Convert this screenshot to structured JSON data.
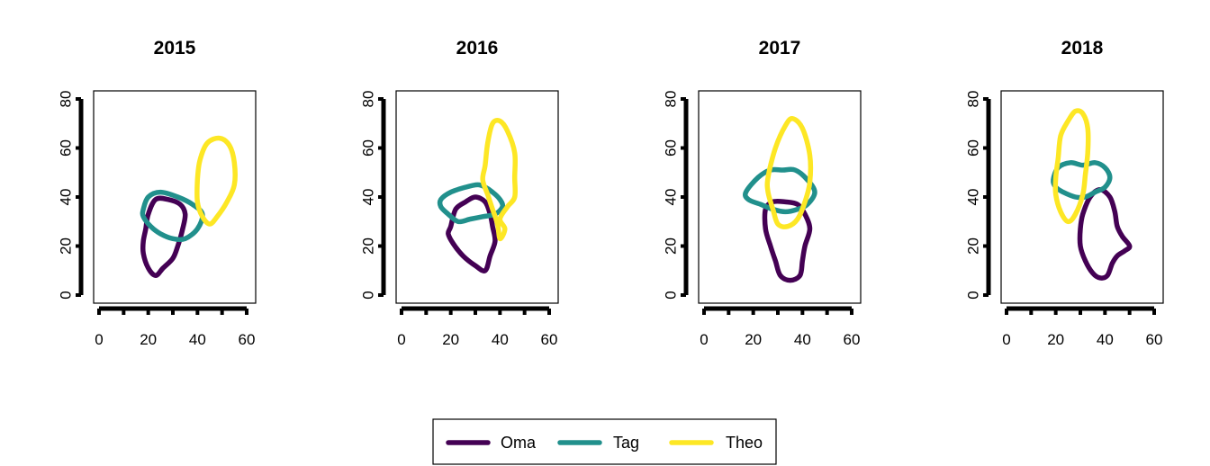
{
  "colors": {
    "Oma": "#440154",
    "Tag": "#21908C",
    "Theo": "#FDE725"
  },
  "legend": {
    "entries": [
      "Oma",
      "Tag",
      "Theo"
    ],
    "placement": "bottom-center"
  },
  "chart_data": [
    {
      "type": "line",
      "title": "2015",
      "xlabel": "",
      "ylabel": "",
      "xlim": [
        0,
        60
      ],
      "ylim": [
        0,
        80
      ],
      "xticks": [
        0,
        20,
        40,
        60
      ],
      "yticks": [
        0,
        20,
        40,
        60,
        80
      ],
      "grid": false,
      "series": [
        {
          "name": "Oma",
          "closed": true,
          "points": [
            [
              20,
              33
            ],
            [
              23,
              39
            ],
            [
              28,
              39
            ],
            [
              33,
              37
            ],
            [
              35,
              33
            ],
            [
              34,
              27
            ],
            [
              32,
              20
            ],
            [
              30,
              15
            ],
            [
              26,
              11
            ],
            [
              23,
              8
            ],
            [
              20,
              11
            ],
            [
              18,
              17
            ],
            [
              18,
              22
            ],
            [
              19,
              27
            ]
          ]
        },
        {
          "name": "Tag",
          "closed": true,
          "points": [
            [
              18,
              35
            ],
            [
              20,
              40
            ],
            [
              25,
              42
            ],
            [
              32,
              40
            ],
            [
              38,
              37
            ],
            [
              42,
              33
            ],
            [
              40,
              27
            ],
            [
              35,
              23
            ],
            [
              30,
              23
            ],
            [
              25,
              25
            ],
            [
              21,
              28
            ],
            [
              18,
              32
            ]
          ]
        },
        {
          "name": "Theo",
          "closed": true,
          "points": [
            [
              41,
              55
            ],
            [
              44,
              62
            ],
            [
              49,
              64
            ],
            [
              53,
              61
            ],
            [
              55,
              54
            ],
            [
              55,
              45
            ],
            [
              52,
              38
            ],
            [
              48,
              32
            ],
            [
              45,
              29
            ],
            [
              42,
              32
            ],
            [
              40,
              38
            ],
            [
              40,
              47
            ]
          ]
        }
      ]
    },
    {
      "type": "line",
      "title": "2016",
      "xlabel": "",
      "ylabel": "",
      "xlim": [
        0,
        60
      ],
      "ylim": [
        0,
        80
      ],
      "xticks": [
        0,
        20,
        40,
        60
      ],
      "yticks": [
        0,
        20,
        40,
        60,
        80
      ],
      "grid": false,
      "series": [
        {
          "name": "Oma",
          "closed": true,
          "points": [
            [
              20,
              28
            ],
            [
              22,
              35
            ],
            [
              26,
              38
            ],
            [
              30,
              40
            ],
            [
              34,
              38
            ],
            [
              36,
              33
            ],
            [
              37,
              28
            ],
            [
              38,
              22
            ],
            [
              36,
              16
            ],
            [
              34,
              10
            ],
            [
              30,
              12
            ],
            [
              25,
              16
            ],
            [
              21,
              21
            ],
            [
              19,
              25
            ]
          ]
        },
        {
          "name": "Tag",
          "closed": true,
          "points": [
            [
              16,
              39
            ],
            [
              20,
              42
            ],
            [
              26,
              44
            ],
            [
              31,
              45
            ],
            [
              34,
              44
            ],
            [
              37,
              42
            ],
            [
              40,
              39
            ],
            [
              41,
              36
            ],
            [
              38,
              33
            ],
            [
              33,
              32
            ],
            [
              28,
              31
            ],
            [
              23,
              30
            ],
            [
              19,
              33
            ],
            [
              16,
              36
            ]
          ]
        },
        {
          "name": "Theo",
          "closed": true,
          "points": [
            [
              34,
              53
            ],
            [
              35,
              62
            ],
            [
              37,
              70
            ],
            [
              40,
              71
            ],
            [
              43,
              67
            ],
            [
              46,
              58
            ],
            [
              46,
              48
            ],
            [
              46,
              40
            ],
            [
              43,
              36
            ],
            [
              40,
              31
            ],
            [
              42,
              27
            ],
            [
              40,
              23
            ],
            [
              39,
              29
            ],
            [
              37,
              35
            ],
            [
              35,
              41
            ],
            [
              33,
              47
            ]
          ]
        }
      ]
    },
    {
      "type": "line",
      "title": "2017",
      "xlabel": "",
      "ylabel": "",
      "xlim": [
        0,
        60
      ],
      "ylim": [
        0,
        80
      ],
      "xticks": [
        0,
        20,
        40,
        60
      ],
      "yticks": [
        0,
        20,
        40,
        60,
        80
      ],
      "grid": false,
      "series": [
        {
          "name": "Oma",
          "closed": true,
          "points": [
            [
              25,
              35
            ],
            [
              28,
              38
            ],
            [
              33,
              38
            ],
            [
              38,
              37
            ],
            [
              41,
              33
            ],
            [
              43,
              27
            ],
            [
              41,
              20
            ],
            [
              40,
              14
            ],
            [
              39,
              8
            ],
            [
              35,
              6
            ],
            [
              31,
              8
            ],
            [
              29,
              14
            ],
            [
              27,
              20
            ],
            [
              25,
              27
            ]
          ]
        },
        {
          "name": "Tag",
          "closed": true,
          "points": [
            [
              17,
              42
            ],
            [
              22,
              48
            ],
            [
              27,
              51
            ],
            [
              32,
              51
            ],
            [
              37,
              51
            ],
            [
              42,
              47
            ],
            [
              45,
              42
            ],
            [
              42,
              37
            ],
            [
              38,
              35
            ],
            [
              33,
              34
            ],
            [
              28,
              35
            ],
            [
              23,
              37
            ],
            [
              18,
              39
            ]
          ]
        },
        {
          "name": "Theo",
          "closed": true,
          "points": [
            [
              26,
              48
            ],
            [
              29,
              60
            ],
            [
              33,
              69
            ],
            [
              36,
              72
            ],
            [
              40,
              68
            ],
            [
              43,
              57
            ],
            [
              43,
              46
            ],
            [
              41,
              38
            ],
            [
              38,
              31
            ],
            [
              34,
              28
            ],
            [
              30,
              29
            ],
            [
              28,
              35
            ],
            [
              26,
              42
            ]
          ]
        }
      ]
    },
    {
      "type": "line",
      "title": "2018",
      "xlabel": "",
      "ylabel": "",
      "xlim": [
        0,
        60
      ],
      "ylim": [
        0,
        80
      ],
      "xticks": [
        0,
        20,
        40,
        60
      ],
      "yticks": [
        0,
        20,
        40,
        60,
        80
      ],
      "grid": false,
      "series": [
        {
          "name": "Oma",
          "closed": true,
          "points": [
            [
              34,
              40
            ],
            [
              38,
              43
            ],
            [
              42,
              40
            ],
            [
              44,
              34
            ],
            [
              45,
              28
            ],
            [
              47,
              24
            ],
            [
              50,
              20
            ],
            [
              48,
              18
            ],
            [
              45,
              16
            ],
            [
              43,
              13
            ],
            [
              41,
              8
            ],
            [
              38,
              7
            ],
            [
              35,
              9
            ],
            [
              32,
              14
            ],
            [
              30,
              20
            ],
            [
              30,
              27
            ],
            [
              31,
              33
            ]
          ]
        },
        {
          "name": "Tag",
          "closed": true,
          "points": [
            [
              19,
              47
            ],
            [
              21,
              52
            ],
            [
              26,
              54
            ],
            [
              31,
              53
            ],
            [
              36,
              54
            ],
            [
              40,
              52
            ],
            [
              42,
              48
            ],
            [
              40,
              44
            ],
            [
              36,
              42
            ],
            [
              32,
              40
            ],
            [
              28,
              40
            ],
            [
              23,
              42
            ],
            [
              20,
              44
            ]
          ]
        },
        {
          "name": "Theo",
          "closed": true,
          "points": [
            [
              21,
              56
            ],
            [
              22,
              65
            ],
            [
              25,
              71
            ],
            [
              28,
              75
            ],
            [
              31,
              74
            ],
            [
              33,
              68
            ],
            [
              33,
              58
            ],
            [
              32,
              49
            ],
            [
              31,
              41
            ],
            [
              28,
              33
            ],
            [
              25,
              30
            ],
            [
              22,
              34
            ],
            [
              20,
              41
            ],
            [
              20,
              48
            ]
          ]
        }
      ]
    }
  ]
}
